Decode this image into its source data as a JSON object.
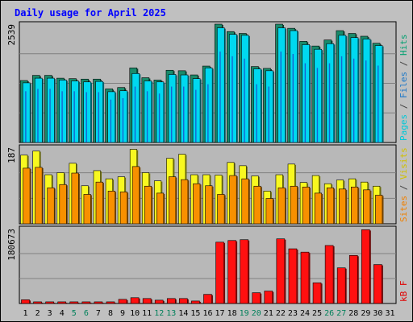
{
  "chart_data": {
    "type": "bar",
    "title": "Daily usage for April 2025",
    "categories": [
      "1",
      "2",
      "3",
      "4",
      "5",
      "6",
      "7",
      "8",
      "9",
      "10",
      "11",
      "12",
      "13",
      "14",
      "15",
      "16",
      "17",
      "18",
      "19",
      "20",
      "21",
      "22",
      "23",
      "24",
      "25",
      "26",
      "27",
      "28",
      "29",
      "30",
      "31"
    ],
    "weekend_days": [
      "5",
      "6",
      "12",
      "13",
      "19",
      "20",
      "26",
      "27"
    ],
    "panels": [
      {
        "id": "hits-files-pages",
        "max_label": "2539",
        "ylim": [
          0,
          2539
        ],
        "right_labels": [
          {
            "text": "Pages",
            "color": "#00c8d8"
          },
          {
            "text": " / ",
            "color": "#404040"
          },
          {
            "text": "Files",
            "color": "#1e78c8"
          },
          {
            "text": " / ",
            "color": "#404040"
          },
          {
            "text": "Hits",
            "color": "#00a070"
          }
        ],
        "series": [
          {
            "name": "Hits",
            "color": "#1a8a6a",
            "values": [
              1330,
              1440,
              1440,
              1380,
              1370,
              1360,
              1360,
              1150,
              1180,
              1600,
              1390,
              1340,
              1550,
              1540,
              1450,
              1640,
              2539,
              2380,
              2340,
              1630,
              1590,
              2539,
              2450,
              2170,
              2070,
              2200,
              2400,
              2340,
              2280,
              2130,
              0
            ]
          },
          {
            "name": "Files",
            "color": "#1e3ec8",
            "values": [
              1100,
              1150,
              1150,
              1100,
              1100,
              1080,
              1080,
              920,
              950,
              1200,
              1100,
              1050,
              1200,
              1200,
              1130,
              1250,
              1950,
              1850,
              1800,
              1250,
              1200,
              1950,
              1900,
              1700,
              1600,
              1700,
              1850,
              1800,
              1760,
              1650,
              0
            ]
          },
          {
            "name": "Pages",
            "color": "#00d8f0",
            "values": [
              1280,
              1380,
              1380,
              1340,
              1320,
              1300,
              1310,
              1090,
              1110,
              1480,
              1320,
              1300,
              1460,
              1450,
              1370,
              1600,
              2460,
              2320,
              2300,
              1580,
              1540,
              2460,
              2400,
              2100,
              2000,
              2120,
              2300,
              2250,
              2220,
              2080,
              0
            ]
          }
        ]
      },
      {
        "id": "visits-sites",
        "max_label": "187",
        "ylim": [
          0,
          187
        ],
        "right_labels": [
          {
            "text": "Sites",
            "color": "#f08000"
          },
          {
            "text": " / ",
            "color": "#404040"
          },
          {
            "text": "Visits",
            "color": "#d0c000"
          }
        ],
        "series": [
          {
            "name": "Visits",
            "color": "#f8f820",
            "values": [
              168,
              178,
              120,
              125,
              148,
              93,
              130,
              110,
              115,
              182,
              125,
              105,
              160,
              170,
              120,
              120,
              119,
              150,
              142,
              117,
              80,
              120,
              146,
              101,
              118,
              98,
              107,
              110,
              102,
              92,
              0
            ]
          },
          {
            "name": "Sites",
            "color": "#f89000",
            "values": [
              136,
              138,
              88,
              96,
              124,
              72,
              102,
              80,
              78,
              140,
              92,
              75,
              115,
              108,
              98,
              93,
              72,
              118,
              110,
              92,
              62,
              88,
              92,
              90,
              75,
              88,
              85,
              90,
              83,
              70,
              0
            ]
          }
        ]
      },
      {
        "id": "kbf",
        "max_label": "180673",
        "ylim": [
          0,
          180673
        ],
        "right_labels": [
          {
            "text": "kB F",
            "color": "#e00000"
          }
        ],
        "series": [
          {
            "name": "kB F",
            "color": "#ff1010",
            "values": [
              9000,
              4000,
              4000,
              4000,
              4000,
              4000,
              4000,
              4000,
              10000,
              14000,
              12000,
              8000,
              12000,
              12000,
              6000,
              22000,
              148000,
              152000,
              154000,
              26000,
              30000,
              156000,
              132000,
              124000,
              50000,
              140000,
              86000,
              116000,
              178000,
              94000,
              0
            ]
          }
        ]
      }
    ]
  }
}
